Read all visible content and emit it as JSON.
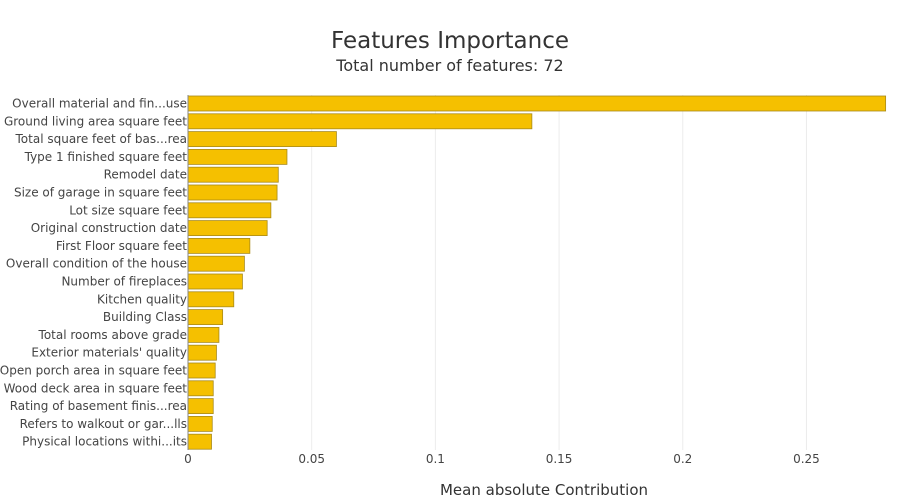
{
  "chart_data": {
    "type": "bar",
    "orientation": "horizontal",
    "title": "Features Importance",
    "subtitle": "Total number of features: 72",
    "xlabel": "Mean absolute Contribution",
    "ylabel": "",
    "xlim": [
      0,
      0.287
    ],
    "xticks": [
      0,
      0.05,
      0.1,
      0.15,
      0.2,
      0.25
    ],
    "xtick_labels": [
      "0",
      "0.05",
      "0.1",
      "0.15",
      "0.2",
      "0.25"
    ],
    "grid": true,
    "bar_color": "#f5c000",
    "bar_edge_color": "#a88a1a",
    "categories": [
      "Overall material and fin...use",
      "Ground living area square feet",
      "Total square feet of bas...rea",
      "Type 1 finished square feet",
      "Remodel date",
      "Size of garage in square feet",
      "Lot size square feet",
      "Original construction date",
      "First Floor square feet",
      "Overall condition of the house",
      "Number of fireplaces",
      "Kitchen quality",
      "Building Class",
      "Total rooms above grade",
      "Exterior materials' quality",
      "Open porch area in square feet",
      "Wood deck area in square feet",
      "Rating of basement finis...rea",
      "Refers to walkout or gar...lls",
      "Physical locations withi...its"
    ],
    "values": [
      0.282,
      0.139,
      0.06,
      0.04,
      0.0365,
      0.036,
      0.0335,
      0.032,
      0.025,
      0.0228,
      0.022,
      0.0185,
      0.014,
      0.0125,
      0.0115,
      0.011,
      0.0102,
      0.0102,
      0.0098,
      0.0095
    ]
  }
}
